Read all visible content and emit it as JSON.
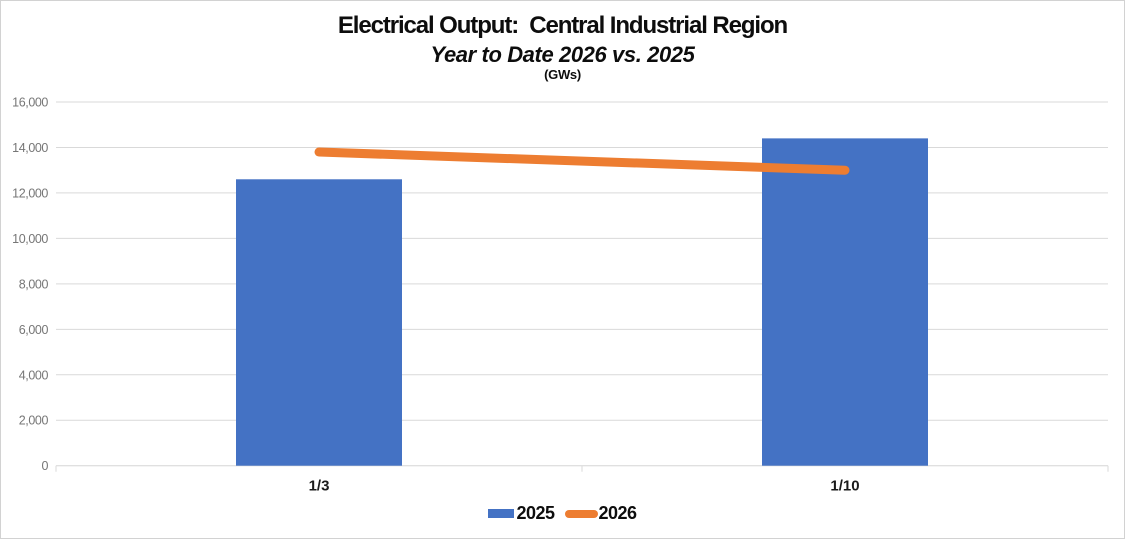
{
  "chart_data": {
    "type": "combo",
    "title": "Electrical Output:  Central Industrial Region",
    "subtitle": "Year to Date 2026 vs. 2025",
    "units_label": "(GWs)",
    "categories": [
      "1/3",
      "1/10"
    ],
    "series": [
      {
        "name": "2025",
        "type": "bar",
        "color": "#4472C4",
        "values": [
          12600,
          14400
        ]
      },
      {
        "name": "2026",
        "type": "line",
        "color": "#ED7D31",
        "values": [
          13800,
          13000
        ]
      }
    ],
    "y_axis": {
      "min": 0,
      "max": 16000,
      "tick_step": 2000,
      "tick_values": [
        0,
        2000,
        4000,
        6000,
        8000,
        10000,
        12000,
        14000,
        16000
      ],
      "tick_labels": [
        "0",
        "2,000",
        "4,000",
        "6,000",
        "8,000",
        "10,000",
        "12,000",
        "14,000",
        "16,000"
      ]
    },
    "grid": true,
    "legend_position": "bottom",
    "colors": {
      "gridline": "#d9d9d9",
      "axis_line": "#d6d6d6",
      "y_tick_label": "#767676",
      "x_tick_label": "#1a1a1a"
    }
  }
}
